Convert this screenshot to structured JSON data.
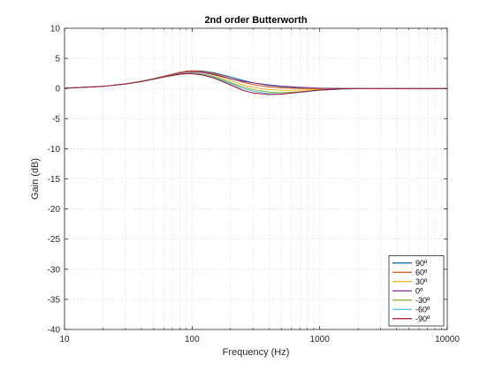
{
  "chart_data": {
    "type": "line",
    "title": "2nd order Butterworth",
    "xlabel": "Frequency (Hz)",
    "ylabel": "Gain (dB)",
    "x_scale": "log",
    "xlim": [
      10,
      10000
    ],
    "ylim": [
      -40,
      10
    ],
    "x_ticks": [
      10,
      100,
      1000,
      10000
    ],
    "x_tick_labels": [
      "10",
      "100",
      "1000",
      "10000"
    ],
    "y_ticks": [
      10,
      5,
      0,
      -5,
      -10,
      -15,
      -20,
      -25,
      -30,
      -35,
      -40
    ],
    "y_tick_labels": [
      "10",
      "5",
      "0",
      "-5",
      "-10",
      "-15",
      "-20",
      "-25",
      "-30",
      "-35",
      "-40"
    ],
    "grid": "dotted, major and minor",
    "legend_position": "bottom-right",
    "x": [
      10,
      20,
      30,
      40,
      50,
      60,
      70,
      80,
      90,
      100,
      120,
      150,
      200,
      250,
      300,
      400,
      500,
      700,
      1000,
      1500,
      2000,
      3000,
      5000,
      10000
    ],
    "series": [
      {
        "name": "90º",
        "color": "#0b5c8a",
        "values": [
          0.05,
          0.35,
          0.75,
          1.2,
          1.65,
          2.05,
          2.4,
          2.7,
          2.88,
          2.95,
          2.9,
          2.6,
          1.9,
          1.35,
          0.95,
          0.5,
          0.3,
          0.12,
          0.05,
          0.02,
          0.01,
          0.0,
          0.0,
          0.0
        ]
      },
      {
        "name": "60º",
        "color": "#d95319",
        "values": [
          0.05,
          0.35,
          0.75,
          1.2,
          1.65,
          2.05,
          2.4,
          2.68,
          2.85,
          2.9,
          2.8,
          2.45,
          1.65,
          1.05,
          0.65,
          0.25,
          0.1,
          0.0,
          -0.02,
          0.0,
          0.0,
          0.0,
          0.0,
          0.0
        ]
      },
      {
        "name": "30º",
        "color": "#edb120",
        "values": [
          0.05,
          0.35,
          0.75,
          1.2,
          1.6,
          2.0,
          2.35,
          2.6,
          2.75,
          2.8,
          2.65,
          2.2,
          1.3,
          0.6,
          0.2,
          -0.2,
          -0.3,
          -0.3,
          -0.15,
          -0.05,
          0.0,
          0.0,
          0.0,
          0.0
        ]
      },
      {
        "name": "0º",
        "color": "#7e2f8e",
        "values": [
          0.05,
          0.35,
          0.75,
          1.2,
          1.6,
          2.0,
          2.3,
          2.55,
          2.7,
          2.75,
          2.65,
          2.3,
          1.6,
          1.2,
          0.95,
          0.6,
          0.4,
          0.2,
          0.05,
          -0.05,
          0.0,
          0.0,
          0.0,
          0.0
        ]
      },
      {
        "name": "-30º",
        "color": "#77ac30",
        "values": [
          0.05,
          0.35,
          0.75,
          1.2,
          1.6,
          1.95,
          2.2,
          2.4,
          2.5,
          2.55,
          2.4,
          1.95,
          1.0,
          0.25,
          -0.2,
          -0.6,
          -0.7,
          -0.55,
          -0.3,
          -0.1,
          -0.02,
          0.0,
          0.0,
          0.0
        ]
      },
      {
        "name": "-60º",
        "color": "#4dbeee",
        "values": [
          0.05,
          0.35,
          0.75,
          1.15,
          1.55,
          1.9,
          2.15,
          2.35,
          2.45,
          2.5,
          2.3,
          1.8,
          0.8,
          0.0,
          -0.45,
          -0.85,
          -0.9,
          -0.65,
          -0.3,
          -0.1,
          -0.02,
          0.0,
          0.0,
          0.0
        ]
      },
      {
        "name": "-90º",
        "color": "#a2142f",
        "values": [
          0.05,
          0.35,
          0.75,
          1.15,
          1.55,
          1.9,
          2.15,
          2.35,
          2.45,
          2.45,
          2.25,
          1.7,
          0.6,
          -0.3,
          -0.75,
          -1.0,
          -0.95,
          -0.6,
          -0.25,
          -0.05,
          0.0,
          0.0,
          0.0,
          0.0
        ]
      }
    ]
  }
}
